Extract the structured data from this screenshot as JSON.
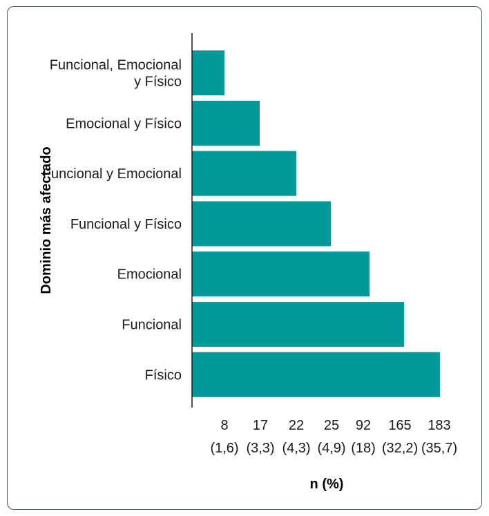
{
  "chart_data": {
    "type": "bar",
    "orientation": "horizontal",
    "ylabel": "Dominio más afectado",
    "xlabel": "n (%)",
    "bar_color": "#00999a",
    "categories": [
      "Funcional, Emocional y Físico",
      "Emocional y Físico",
      "Funcional y Emocional",
      "Funcional y Físico",
      "Emocional",
      "Funcional",
      "Físico"
    ],
    "values": [
      8,
      17,
      22,
      25,
      92,
      165,
      183
    ],
    "tick_labels": [
      {
        "n": "8",
        "pct": "(1,6)"
      },
      {
        "n": "17",
        "pct": "(3,3)"
      },
      {
        "n": "22",
        "pct": "(4,3)"
      },
      {
        "n": "25",
        "pct": "(4,9)"
      },
      {
        "n": "92",
        "pct": "(18)"
      },
      {
        "n": "165",
        "pct": "(32,2)"
      },
      {
        "n": "183",
        "pct": "(35,7)"
      }
    ],
    "category_lines": [
      [
        "Funcional, Emocional",
        "y Físico"
      ],
      [
        "Emocional y Físico"
      ],
      [
        "Funcional y Emocional"
      ],
      [
        "Funcional y Físico"
      ],
      [
        "Emocional"
      ],
      [
        "Funcional"
      ],
      [
        "Físico"
      ]
    ]
  }
}
